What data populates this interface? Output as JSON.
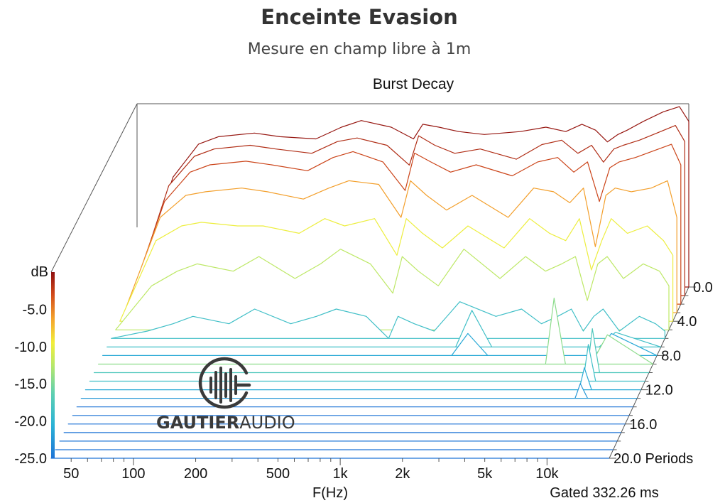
{
  "title": "Enceinte Evasion",
  "subtitle": "Mesure en champ libre à 1m",
  "chart_data": {
    "type": "waterfall",
    "title": "Burst Decay",
    "xlabel": "F(Hz)",
    "gating_note": "Gated 332.26 ms",
    "x_ticks": [
      "50",
      "100",
      "200",
      "500",
      "1k",
      "2k",
      "5k",
      "10k"
    ],
    "x_tick_values": [
      50,
      100,
      200,
      500,
      1000,
      2000,
      5000,
      10000
    ],
    "xlim": [
      40,
      20000
    ],
    "z_ticks": [
      "0.0",
      "4.0",
      "8.0",
      "12.0",
      "16.0",
      "20.0 Periods"
    ],
    "z_tick_values": [
      0,
      4,
      8,
      12,
      16,
      20
    ],
    "zlim": [
      0,
      20
    ],
    "colorbar_label": "dB",
    "colorbar_ticks": [
      "-5.0",
      "-10.0",
      "-15.0",
      "-20.0",
      "-25.0"
    ],
    "colorbar_tick_values": [
      -5,
      -10,
      -15,
      -20,
      -25
    ],
    "ylim": [
      -25,
      0
    ],
    "colormap": [
      "#1e74d6",
      "#2bb3d6",
      "#5fd0b0",
      "#b8e86a",
      "#f2ee3a",
      "#f4a32c",
      "#d24a1a",
      "#8e0f0f"
    ],
    "slice_periods": [
      0,
      1,
      2,
      3,
      4,
      5,
      6,
      7,
      8,
      9,
      10,
      11,
      12,
      13,
      14,
      15,
      16,
      17,
      18,
      19,
      20
    ],
    "slices": [
      {
        "period": 0,
        "freq": [
          40,
          60,
          80,
          100,
          150,
          200,
          300,
          400,
          500,
          700,
          900,
          1000,
          1200,
          1500,
          2000,
          3000,
          4000,
          5000,
          6000,
          7000,
          8000,
          9000,
          10000,
          12000,
          15000,
          18000,
          20000
        ],
        "db": [
          -25,
          -10,
          -5.5,
          -4.5,
          -4,
          -4.5,
          -4.8,
          -3.2,
          -2.3,
          -3.2,
          -4.8,
          -2.8,
          -3.2,
          -3.8,
          -4.2,
          -3.8,
          -3.2,
          -3.8,
          -2.8,
          -3.6,
          -5.2,
          -4.2,
          -3.6,
          -2.4,
          -1.1,
          -0.4,
          -2.4
        ]
      },
      {
        "period": 1,
        "freq": [
          40,
          60,
          80,
          100,
          150,
          200,
          300,
          400,
          500,
          700,
          900,
          1000,
          1200,
          1500,
          2000,
          3000,
          4000,
          5000,
          6000,
          7000,
          8000,
          9000,
          10000,
          12000,
          15000,
          18000,
          20000
        ],
        "db": [
          -25,
          -10,
          -6,
          -5,
          -4.5,
          -5,
          -5.6,
          -4,
          -3.5,
          -4.5,
          -7.2,
          -3.2,
          -4.5,
          -5.6,
          -5,
          -6.4,
          -4.4,
          -3.8,
          -5.6,
          -4.5,
          -6.8,
          -5,
          -4.5,
          -3.8,
          -2.7,
          -1.8,
          -4
        ]
      },
      {
        "period": 2,
        "freq": [
          40,
          60,
          80,
          100,
          150,
          200,
          300,
          400,
          500,
          700,
          900,
          1000,
          1200,
          1500,
          2000,
          3000,
          4000,
          5000,
          6000,
          7000,
          8000,
          9000,
          10000,
          12000,
          15000,
          18000,
          20000
        ],
        "db": [
          -25,
          -11,
          -7,
          -6,
          -5.5,
          -6,
          -6.8,
          -5,
          -4.2,
          -5.6,
          -9.5,
          -4.4,
          -5.6,
          -7,
          -6,
          -7.5,
          -5.6,
          -5,
          -7,
          -5.6,
          -11,
          -6.4,
          -5.6,
          -5,
          -4,
          -3.2,
          -6
        ]
      },
      {
        "period": 3,
        "freq": [
          40,
          60,
          80,
          100,
          150,
          200,
          300,
          400,
          500,
          700,
          900,
          1000,
          1200,
          1500,
          2000,
          3000,
          4000,
          5000,
          6000,
          7000,
          8000,
          9000,
          10000,
          12000,
          15000,
          18000,
          20000
        ],
        "db": [
          -25,
          -12,
          -9,
          -8.5,
          -8,
          -8.5,
          -9.5,
          -8,
          -7,
          -7.5,
          -12,
          -7,
          -9,
          -11,
          -9,
          -12,
          -8,
          -8.5,
          -10,
          -8,
          -16,
          -9,
          -8,
          -8.5,
          -8,
          -7,
          -12
        ]
      },
      {
        "period": 4,
        "freq": [
          40,
          60,
          80,
          100,
          150,
          200,
          300,
          400,
          500,
          700,
          900,
          1000,
          1200,
          1500,
          2000,
          3000,
          4000,
          5000,
          6000,
          7000,
          8000,
          9000,
          10000,
          12000,
          15000,
          18000,
          20000
        ],
        "db": [
          -25,
          -14,
          -12,
          -11.5,
          -12,
          -12,
          -13,
          -11,
          -12,
          -11,
          -16,
          -11,
          -13,
          -15,
          -12,
          -15,
          -11,
          -13,
          -14,
          -11,
          -18,
          -14,
          -11,
          -13,
          -12,
          -14,
          -16
        ]
      },
      {
        "period": 5,
        "freq": [
          40,
          60,
          80,
          100,
          150,
          200,
          300,
          400,
          500,
          700,
          900,
          1000,
          1200,
          1500,
          2000,
          3000,
          4000,
          5000,
          6000,
          7000,
          8000,
          9000,
          10000,
          12000,
          15000,
          18000,
          20000
        ],
        "db": [
          -25,
          -19,
          -17,
          -16,
          -17,
          -15,
          -18,
          -16,
          -14,
          -16,
          -20,
          -15,
          -17,
          -19,
          -14,
          -18,
          -15,
          -17,
          -16,
          -15,
          -21,
          -16,
          -15,
          -18,
          -16,
          -17,
          -19
        ]
      },
      {
        "period": 6,
        "freq": [
          40,
          60,
          80,
          100,
          150,
          200,
          300,
          400,
          500,
          700,
          900,
          1000,
          1200,
          1500,
          2000,
          3000,
          4000,
          5000,
          6000,
          7000,
          8000,
          9000,
          10000,
          12000,
          15000,
          18000,
          20000
        ],
        "db": [
          -25,
          -24,
          -23,
          -22,
          -23,
          -21,
          -23,
          -22,
          -21,
          -22,
          -25,
          -22,
          -23,
          -24,
          -20,
          -22,
          -21,
          -23,
          -22,
          -21,
          -24,
          -22,
          -21,
          -24,
          -22,
          -23,
          -24
        ]
      },
      {
        "period": 7,
        "freq": [
          40,
          1000,
          2000,
          2400,
          3000,
          6000,
          10000,
          12000,
          20000
        ],
        "db": [
          -25,
          -25,
          -25,
          -20,
          -25,
          -25,
          -25,
          -23,
          -25
        ]
      },
      {
        "period": 8,
        "freq": [
          40,
          1000,
          2000,
          2400,
          3000,
          6000,
          10000,
          12000,
          20000
        ],
        "db": [
          -25,
          -25,
          -25,
          -22,
          -25,
          -25,
          -25,
          -22,
          -25
        ]
      },
      {
        "period": 9,
        "freq": [
          40,
          5000,
          6000,
          6600,
          7500,
          10000,
          12000,
          20000
        ],
        "db": [
          -25,
          -25,
          -25,
          -16,
          -25,
          -25,
          -21,
          -25
        ]
      },
      {
        "period": 10,
        "freq": [
          40,
          9000,
          10000,
          10600,
          11500,
          20000
        ],
        "db": [
          -25,
          -25,
          -25,
          -19,
          -25,
          -25
        ]
      },
      {
        "period": 11,
        "freq": [
          40,
          9000,
          10000,
          10600,
          11500,
          20000
        ],
        "db": [
          -25,
          -25,
          -25,
          -20,
          -25,
          -25
        ]
      },
      {
        "period": 12,
        "freq": [
          40,
          9000,
          10000,
          10600,
          11500,
          20000
        ],
        "db": [
          -25,
          -25,
          -25,
          -22,
          -25,
          -25
        ]
      },
      {
        "period": 13,
        "freq": [
          40,
          9000,
          10000,
          10600,
          11500,
          20000
        ],
        "db": [
          -25,
          -25,
          -25,
          -23,
          -25,
          -25
        ]
      },
      {
        "period": 14,
        "freq": [
          40,
          20000
        ],
        "db": [
          -25,
          -25
        ]
      },
      {
        "period": 15,
        "freq": [
          40,
          20000
        ],
        "db": [
          -25,
          -25
        ]
      },
      {
        "period": 16,
        "freq": [
          40,
          20000
        ],
        "db": [
          -25,
          -25
        ]
      },
      {
        "period": 17,
        "freq": [
          40,
          20000
        ],
        "db": [
          -25,
          -25
        ]
      },
      {
        "period": 18,
        "freq": [
          40,
          20000
        ],
        "db": [
          -25,
          -25
        ]
      },
      {
        "period": 19,
        "freq": [
          40,
          20000
        ],
        "db": [
          -25,
          -25
        ]
      },
      {
        "period": 20,
        "freq": [
          40,
          20000
        ],
        "db": [
          -25,
          -25
        ]
      }
    ]
  },
  "logo": {
    "text_bold": "GAUTIER",
    "text_light": "AUDIO",
    "icon": "waveform-g-logo-icon",
    "color": "#3a3a3a"
  }
}
